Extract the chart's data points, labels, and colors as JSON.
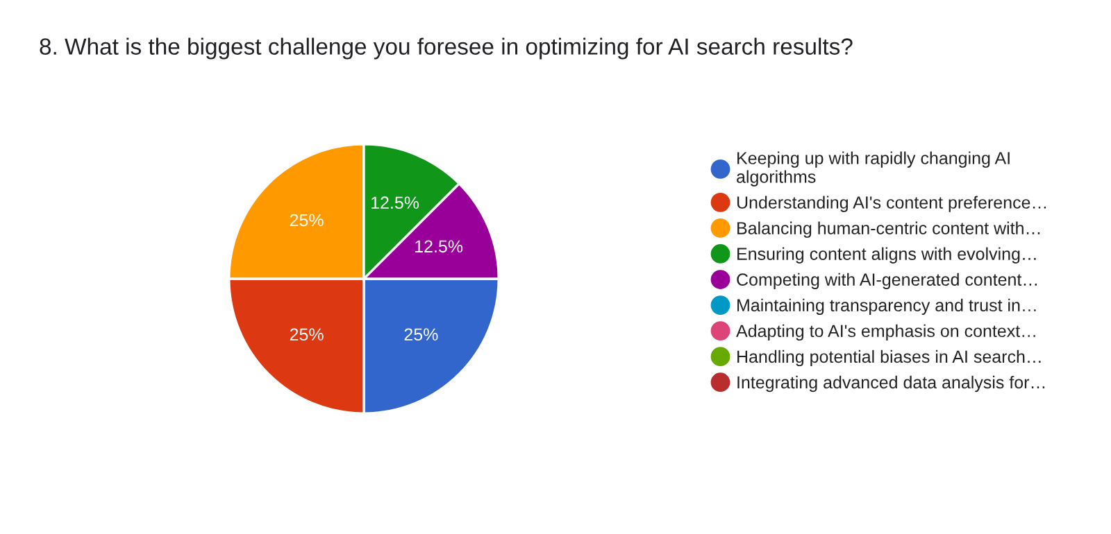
{
  "chart_data": {
    "type": "pie",
    "title": "8. What is the biggest challenge you foresee in optimizing for AI search results?",
    "categories": [
      "Keeping up with rapidly changing AI\nalgorithms",
      "Understanding AI's content preference…",
      "Balancing human-centric content with…",
      "Ensuring content aligns with evolving…",
      "Competing with AI-generated content…",
      "Maintaining transparency and trust in…",
      "Adapting to AI's emphasis on context…",
      "Handling potential biases in AI search…",
      "Integrating advanced data analysis for…"
    ],
    "values": [
      25,
      25,
      25,
      12.5,
      12.5,
      0,
      0,
      0,
      0
    ],
    "value_labels": [
      "25%",
      "25%",
      "25%",
      "12.5%",
      "12.5%",
      null,
      null,
      null,
      null
    ],
    "colors": [
      "#3366cc",
      "#dc3912",
      "#ff9900",
      "#109618",
      "#990099",
      "#0099c6",
      "#dd4477",
      "#66aa00",
      "#b82e2e"
    ],
    "legend": "right"
  }
}
